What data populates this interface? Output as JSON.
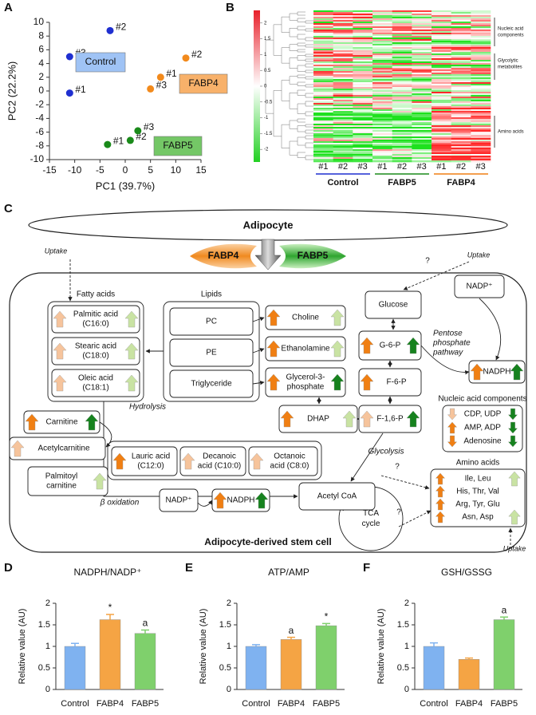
{
  "panel_labels": [
    "A",
    "B",
    "C",
    "D",
    "E",
    "F"
  ],
  "chart_data": [
    {
      "type": "scatter",
      "x_label": "PC1 (39.7%)",
      "y_label": "PC2 (22.2%)",
      "xlim": [
        -15,
        15
      ],
      "ylim": [
        -10,
        10
      ],
      "xticks": [
        -15,
        -10,
        -5,
        0,
        5,
        10,
        15
      ],
      "yticks": [
        -10,
        -8,
        -6,
        -4,
        -2,
        0,
        2,
        4,
        6,
        8,
        10
      ],
      "series": [
        {
          "name": "Control",
          "color": "#1f2fd0",
          "point_labels": [
            "#1",
            "#2",
            "#3"
          ],
          "x": [
            -11,
            -3,
            -11
          ],
          "y": [
            -0.3,
            8.8,
            5
          ]
        },
        {
          "name": "FABP4",
          "color": "#f28a1c",
          "point_labels": [
            "#1",
            "#2",
            "#3"
          ],
          "x": [
            7,
            12,
            5
          ],
          "y": [
            2,
            4.8,
            0.3
          ]
        },
        {
          "name": "FABP5",
          "color": "#1a8a1a",
          "point_labels": [
            "#1",
            "#2",
            "#3"
          ],
          "x": [
            -3.5,
            1,
            2.5
          ],
          "y": [
            -7.8,
            -7.2,
            -5.8
          ]
        }
      ]
    },
    {
      "type": "bar",
      "title": "NADPH/NADP⁺",
      "y_label": "Relative value (AU)",
      "categories": [
        "Control",
        "FABP4",
        "FABP5"
      ],
      "values": [
        1.0,
        1.62,
        1.3
      ],
      "errors": [
        0.07,
        0.12,
        0.08
      ],
      "colors": [
        "#7fb2f0",
        "#f5a444",
        "#7fd06c"
      ],
      "annotations": [
        {
          "index": 1,
          "text": "*"
        },
        {
          "index": 2,
          "text": "a"
        }
      ],
      "ylim": [
        0,
        2
      ],
      "yticks": [
        0,
        0.5,
        1,
        1.5,
        2
      ]
    },
    {
      "type": "bar",
      "title": "ATP/AMP",
      "y_label": "Relative value (AU)",
      "categories": [
        "Control",
        "FABP4",
        "FABP5"
      ],
      "values": [
        1.0,
        1.16,
        1.48
      ],
      "errors": [
        0.04,
        0.05,
        0.05
      ],
      "colors": [
        "#7fb2f0",
        "#f5a444",
        "#7fd06c"
      ],
      "annotations": [
        {
          "index": 1,
          "text": "a"
        },
        {
          "index": 2,
          "text": "*"
        }
      ],
      "ylim": [
        0,
        2
      ],
      "yticks": [
        0,
        0.5,
        1,
        1.5,
        2
      ]
    },
    {
      "type": "bar",
      "title": "GSH/GSSG",
      "y_label": "Relative value (AU)",
      "categories": [
        "Control",
        "FABP4",
        "FABP5"
      ],
      "values": [
        1.0,
        0.7,
        1.62
      ],
      "errors": [
        0.08,
        0.03,
        0.06
      ],
      "colors": [
        "#7fb2f0",
        "#f5a444",
        "#7fd06c"
      ],
      "annotations": [
        {
          "index": 2,
          "text": "a"
        }
      ],
      "ylim": [
        0,
        2
      ],
      "yticks": [
        0,
        0.5,
        1,
        1.5,
        2
      ]
    }
  ],
  "heatmap": {
    "colorbar_lim": [
      -2.4,
      2.4
    ],
    "colorbar_ticks": [
      2,
      1.5,
      1,
      0.5,
      0,
      -0.5,
      -1,
      -1.5,
      -2
    ],
    "columns": [
      "#1",
      "#2",
      "#3",
      "#1",
      "#2",
      "#3",
      "#1",
      "#2",
      "#3"
    ],
    "groups": [
      {
        "name": "Control",
        "color": "#1f2fd0"
      },
      {
        "name": "FABP5",
        "color": "#1a8a1a"
      },
      {
        "name": "FABP4",
        "color": "#f07f13"
      }
    ],
    "row_groups": [
      [
        "Nucleic acid",
        "components"
      ],
      [
        "Glycolytic",
        "metabolites"
      ],
      [
        "Amino acids"
      ]
    ]
  },
  "pathway": {
    "cell_type": "Adipocyte",
    "fabp4": "FABP4",
    "fabp5": "FABP5",
    "stem_cell": "Adipocyte-derived stem cell",
    "uptake": [
      "Uptake",
      "Uptake",
      "Uptake"
    ],
    "unknown": [
      "?",
      "?",
      "?"
    ],
    "fatty_acids": "Fatty acids",
    "fatty_acid_items": [
      [
        "Palmitic acid",
        "(C16:0)"
      ],
      [
        "Stearic acid",
        "(C18:0)"
      ],
      [
        "Oleic acid",
        "(C18:1)"
      ]
    ],
    "lipids": "Lipids",
    "lipid_items": [
      "PC",
      "PE",
      "Triglyceride"
    ],
    "lipid_products": [
      [
        "Choline"
      ],
      [
        "Ethanolamine"
      ],
      [
        "Glycerol-3-",
        "phosphate"
      ]
    ],
    "glucose": "Glucose",
    "glycolysis_items": [
      "G-6-P",
      "F-6-P",
      "F-1,6-P",
      "DHAP"
    ],
    "pentose": [
      "Pentose",
      "phosphate",
      "pathway"
    ],
    "nadp": [
      "NADP⁺",
      "NADP⁺"
    ],
    "nadph": [
      "NADPH",
      "NADPH"
    ],
    "nucleic": "Nucleic acid components",
    "nucleic_items": [
      "CDP, UDP",
      "AMP, ADP",
      "Adenosine"
    ],
    "amino": "Amino acids",
    "amino_items": [
      "Ile, Leu",
      "His, Thr, Val",
      "Arg, Tyr, Glu",
      "Asn, Asp"
    ],
    "hydrolysis": "Hydrolysis",
    "glycolysis": "Glycolysis",
    "beta_oxidation": "β oxidation",
    "carnitines": [
      [
        "Carnitine"
      ],
      [
        "Acetylcarnitine"
      ],
      [
        "Palmitoyl",
        "carnitine"
      ]
    ],
    "mcfa": [
      [
        "Lauric acid",
        "(C12:0)"
      ],
      [
        "Decanoic",
        "acid (C10:0)"
      ],
      [
        "Octanoic",
        "acid (C8:0)"
      ]
    ],
    "acetyl_coa": "Acetyl CoA",
    "tca": [
      "TCA",
      "cycle"
    ]
  }
}
